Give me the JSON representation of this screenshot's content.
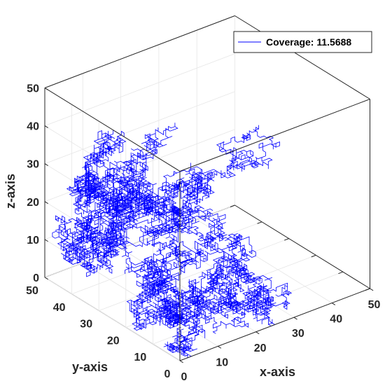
{
  "chart_data": {
    "type": "line",
    "subtype": "3d-random-walk",
    "xlabel": "x-axis",
    "ylabel": "y-axis",
    "zlabel": "z-axis",
    "xlim": [
      0,
      50
    ],
    "ylim": [
      0,
      50
    ],
    "zlim": [
      0,
      50
    ],
    "x_ticks": [
      "0",
      "10",
      "20",
      "30",
      "40",
      "50"
    ],
    "y_ticks": [
      "0",
      "10",
      "20",
      "30",
      "40",
      "50"
    ],
    "z_ticks": [
      "0",
      "10",
      "20",
      "30",
      "40",
      "50"
    ],
    "grid": true,
    "box": true,
    "legend": {
      "position": "top-right",
      "entries": [
        "Coverage: 11.5688"
      ]
    },
    "series": [
      {
        "name": "Coverage: 11.5688",
        "color": "#0000ff",
        "style": "stepwise lattice random walk, approx. 12000 unit steps filling the 50x50x50 cube"
      }
    ]
  }
}
